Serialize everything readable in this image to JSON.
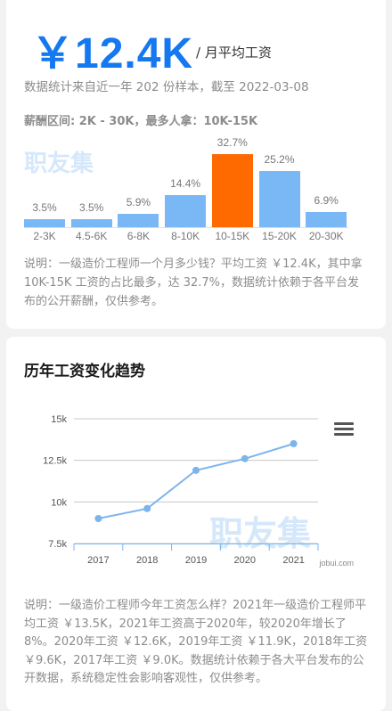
{
  "salary_card": {
    "amount": "￥12.4K",
    "unit": "/ 月平均工资",
    "meta": "数据统计来自近一年 202 份样本，截至 2022-03-08",
    "range_text": "薪酬区间: 2K - 30K，最多人拿：10K-15K",
    "watermark": "职友集",
    "description": "说明：一级造价工程师一个月多少钱？平均工资 ￥12.4K，其中拿 10K-15K 工资的占比最多，达 32.7%，数据统计依赖于各平台发布的公开薪酬，仅供参考。"
  },
  "trend_card": {
    "title": "历年工资变化趋势",
    "watermark": "职友集",
    "description": "说明：一级造价工程师今年工资怎么样？2021年一级造价工程师平均工资 ￥13.5K，2021年工资高于2020年，较2020年增长了8%。2020年工资 ￥12.6K，2019年工资 ￥11.9K，2018年工资 ￥9.6K，2017年工资 ￥9.0K。数据统计依赖于各大平台发布的公开数据，系统稳定性会影响客观性，仅供参考。",
    "menu_icon": "hamburger-menu-icon"
  },
  "chart_data": [
    {
      "type": "bar",
      "categories": [
        "2-3K",
        "4.5-6K",
        "6-8K",
        "8-10K",
        "10-15K",
        "15-20K",
        "20-30K"
      ],
      "values": [
        3.5,
        3.5,
        5.9,
        14.4,
        32.7,
        25.2,
        6.9
      ],
      "value_labels": [
        "3.5%",
        "3.5%",
        "5.9%",
        "14.4%",
        "32.7%",
        "25.2%",
        "6.9%"
      ],
      "highlight_category": "10-15K",
      "colors": {
        "bar": "#7ab8f5",
        "highlight": "#ff6a00"
      }
    },
    {
      "type": "line",
      "x": [
        "2017",
        "2018",
        "2019",
        "2020",
        "2021"
      ],
      "values": [
        9.0,
        9.6,
        11.9,
        12.6,
        13.5
      ],
      "ylim": [
        7.5,
        15
      ],
      "yticks": [
        7.5,
        10,
        12.5,
        15
      ],
      "ytick_labels": [
        "7.5k",
        "10k",
        "12.5k",
        "15k"
      ],
      "grid": true,
      "credit": "jobui.com",
      "colors": {
        "line": "#7cb5ec",
        "grid": "#c8c8c8",
        "axis": "#7cb5ec"
      }
    }
  ]
}
